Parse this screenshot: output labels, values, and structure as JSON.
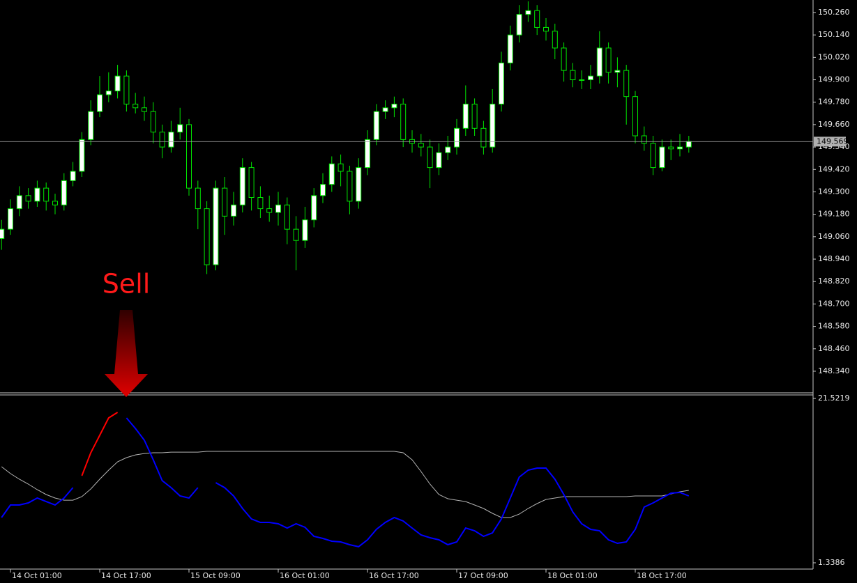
{
  "chart_data": [
    {
      "type": "candlestick",
      "annotation": "Sell",
      "current_price": 149.569,
      "categories": [
        null,
        "14 Oct 01:00",
        null,
        null,
        null,
        null,
        null,
        null,
        null,
        null,
        null,
        "14 Oct 17:00",
        null,
        null,
        null,
        null,
        null,
        null,
        null,
        null,
        null,
        "15 Oct 09:00",
        null,
        null,
        null,
        null,
        null,
        null,
        null,
        null,
        null,
        "16 Oct 01:00",
        null,
        null,
        null,
        null,
        null,
        null,
        null,
        null,
        null,
        "16 Oct 17:00",
        null,
        null,
        null,
        null,
        null,
        null,
        null,
        null,
        null,
        "17 Oct 09:00",
        null,
        null,
        null,
        null,
        null,
        null,
        null,
        null,
        null,
        "18 Oct 01:00",
        null,
        null,
        null,
        null,
        null,
        null,
        null,
        null,
        null,
        "18 Oct 17:00",
        null,
        null,
        null,
        null,
        null,
        null
      ],
      "open": [
        149.05,
        149.1,
        149.21,
        149.28,
        149.25,
        149.32,
        149.25,
        149.23,
        149.36,
        149.41,
        149.58,
        149.73,
        149.82,
        149.84,
        149.92,
        149.77,
        149.75,
        149.73,
        149.62,
        149.54,
        149.62,
        149.66,
        149.32,
        149.21,
        148.91,
        149.32,
        149.17,
        149.23,
        149.43,
        149.27,
        149.21,
        149.19,
        149.23,
        149.1,
        149.04,
        149.15,
        149.28,
        149.34,
        149.45,
        149.41,
        149.25,
        149.43,
        149.58,
        149.73,
        149.75,
        149.77,
        149.58,
        149.56,
        149.54,
        149.43,
        149.51,
        149.54,
        149.64,
        149.77,
        149.64,
        149.54,
        149.77,
        149.99,
        150.14,
        150.25,
        150.27,
        150.18,
        150.16,
        150.07,
        149.95,
        149.9,
        149.9,
        149.92,
        150.07,
        149.94,
        149.95,
        149.81,
        149.6,
        149.56,
        149.43,
        149.54,
        149.53,
        149.54
      ],
      "high": [
        149.15,
        149.26,
        149.33,
        149.32,
        149.36,
        149.35,
        149.29,
        149.4,
        149.46,
        149.62,
        149.79,
        149.92,
        149.94,
        149.98,
        149.95,
        149.83,
        149.81,
        149.78,
        149.66,
        149.68,
        149.75,
        149.69,
        149.36,
        149.25,
        149.36,
        149.38,
        149.3,
        149.48,
        149.46,
        149.33,
        149.28,
        149.3,
        149.27,
        149.17,
        149.22,
        149.32,
        149.4,
        149.49,
        149.5,
        149.44,
        149.48,
        149.63,
        149.77,
        149.79,
        149.81,
        149.8,
        149.63,
        149.61,
        149.58,
        149.56,
        149.6,
        149.69,
        149.87,
        149.8,
        149.68,
        149.85,
        150.05,
        150.19,
        150.3,
        150.32,
        150.3,
        150.23,
        150.2,
        150.1,
        149.99,
        149.95,
        149.98,
        150.16,
        150.1,
        150.02,
        149.98,
        149.84,
        149.65,
        149.6,
        149.58,
        149.58,
        149.61,
        149.6
      ],
      "low": [
        148.99,
        149.07,
        149.17,
        149.21,
        149.22,
        149.2,
        149.18,
        149.2,
        149.33,
        149.38,
        149.55,
        149.7,
        149.78,
        149.8,
        149.73,
        149.72,
        149.68,
        149.56,
        149.48,
        149.51,
        149.58,
        149.28,
        149.1,
        148.86,
        148.88,
        149.07,
        149.12,
        149.19,
        149.2,
        149.16,
        149.14,
        149.12,
        149.02,
        148.88,
        149.0,
        149.11,
        149.24,
        149.3,
        149.33,
        149.18,
        149.21,
        149.39,
        149.55,
        149.69,
        149.7,
        149.54,
        149.51,
        149.49,
        149.32,
        149.39,
        149.47,
        149.5,
        149.6,
        149.6,
        149.5,
        149.51,
        149.73,
        149.95,
        150.1,
        150.21,
        150.14,
        150.11,
        150.01,
        149.89,
        149.86,
        149.85,
        149.85,
        149.88,
        149.88,
        149.86,
        149.66,
        149.56,
        149.52,
        149.39,
        149.41,
        149.47,
        149.49,
        149.51
      ],
      "close": [
        149.1,
        149.21,
        149.28,
        149.25,
        149.32,
        149.25,
        149.23,
        149.36,
        149.41,
        149.58,
        149.73,
        149.82,
        149.84,
        149.92,
        149.77,
        149.75,
        149.73,
        149.62,
        149.54,
        149.62,
        149.66,
        149.32,
        149.21,
        148.91,
        149.32,
        149.17,
        149.23,
        149.43,
        149.27,
        149.21,
        149.19,
        149.23,
        149.1,
        149.04,
        149.15,
        149.28,
        149.34,
        149.45,
        149.41,
        149.25,
        149.43,
        149.58,
        149.73,
        149.75,
        149.77,
        149.58,
        149.56,
        149.54,
        149.43,
        149.51,
        149.54,
        149.64,
        149.77,
        149.64,
        149.54,
        149.77,
        149.99,
        150.14,
        150.25,
        150.27,
        150.18,
        150.16,
        150.07,
        149.95,
        149.9,
        149.9,
        149.92,
        150.07,
        149.94,
        149.95,
        149.81,
        149.6,
        149.56,
        149.43,
        149.54,
        149.53,
        149.54,
        149.57
      ],
      "up_color": "#ffffff",
      "down_color": "#000000",
      "wick_color": "#00e600",
      "ylim": [
        148.228,
        150.327
      ],
      "yticks": [
        {
          "value": 150.26,
          "label": "150.260"
        },
        {
          "value": 150.14,
          "label": "150.140"
        },
        {
          "value": 150.02,
          "label": "150.020"
        },
        {
          "value": 149.9,
          "label": "149.900"
        },
        {
          "value": 149.78,
          "label": "149.780"
        },
        {
          "value": 149.66,
          "label": "149.660"
        },
        {
          "value": 149.54,
          "label": "149.540"
        },
        {
          "value": 149.42,
          "label": "149.420"
        },
        {
          "value": 149.3,
          "label": "149.300"
        },
        {
          "value": 149.18,
          "label": "149.180"
        },
        {
          "value": 149.06,
          "label": "149.060"
        },
        {
          "value": 148.94,
          "label": "148.940"
        },
        {
          "value": 148.82,
          "label": "148.820"
        },
        {
          "value": 148.7,
          "label": "148.700"
        },
        {
          "value": 148.58,
          "label": "148.580"
        },
        {
          "value": 148.46,
          "label": "148.460"
        },
        {
          "value": 148.34,
          "label": "148.340"
        }
      ]
    },
    {
      "type": "line",
      "ylim": [
        1.3386,
        21.5219
      ],
      "yticks": [
        21.5219,
        1.3386
      ],
      "series": [
        {
          "color": "#0000ff",
          "values": [
            6.9,
            8.44,
            8.44,
            8.69,
            9.29,
            8.86,
            8.44,
            9.29,
            10.57,
            null,
            null,
            null,
            null,
            null,
            19.13,
            17.84,
            16.39,
            13.99,
            11.43,
            10.57,
            9.55,
            9.29,
            10.57,
            null,
            11.17,
            10.57,
            9.55,
            8.01,
            6.73,
            6.3,
            6.3,
            6.13,
            5.61,
            6.13,
            5.7,
            4.59,
            4.33,
            3.99,
            3.9,
            3.56,
            3.31,
            4.16,
            5.44,
            6.3,
            6.9,
            6.47,
            5.61,
            4.76,
            4.42,
            4.16,
            3.56,
            3.9,
            5.61,
            5.27,
            4.59,
            5.02,
            6.73,
            9.29,
            11.86,
            12.71,
            12.97,
            12.97,
            11.6,
            9.72,
            7.58,
            6.13,
            5.44,
            5.27,
            4.16,
            3.73,
            3.9,
            5.44,
            8.18,
            8.69,
            9.29,
            9.89,
            9.98,
            9.55
          ]
        },
        {
          "color": "#ff0000",
          "values": [
            null,
            null,
            null,
            null,
            null,
            null,
            null,
            null,
            null,
            12.03,
            14.85,
            16.99,
            19.13,
            19.81,
            null,
            null,
            null,
            null,
            null,
            null,
            null,
            null,
            null,
            null,
            null,
            null,
            null,
            null,
            null,
            null,
            null,
            null,
            null,
            null,
            null,
            null,
            null,
            null,
            null,
            null,
            null,
            null,
            null,
            null,
            null,
            null,
            null,
            null,
            null,
            null,
            null,
            null,
            null,
            null,
            null,
            null,
            null,
            null,
            null,
            null,
            null,
            null,
            null,
            null,
            null,
            null,
            null,
            null,
            null,
            null,
            null,
            null,
            null,
            null,
            null,
            null,
            null,
            null
          ]
        },
        {
          "color": "#b4b4b4",
          "values": [
            13.14,
            12.29,
            11.6,
            11.0,
            10.32,
            9.72,
            9.29,
            9.03,
            9.03,
            9.46,
            10.4,
            11.6,
            12.71,
            13.74,
            14.25,
            14.59,
            14.76,
            14.85,
            14.85,
            14.93,
            14.93,
            14.93,
            14.93,
            15.02,
            15.02,
            15.02,
            15.02,
            15.02,
            15.02,
            15.02,
            15.02,
            15.02,
            15.02,
            15.02,
            15.02,
            15.02,
            15.02,
            15.02,
            15.02,
            15.02,
            15.02,
            15.02,
            15.02,
            15.02,
            15.02,
            14.85,
            13.99,
            12.54,
            11.0,
            9.72,
            9.21,
            9.03,
            8.86,
            8.44,
            8.01,
            7.41,
            6.9,
            6.9,
            7.32,
            8.01,
            8.61,
            9.12,
            9.29,
            9.46,
            9.46,
            9.46,
            9.46,
            9.46,
            9.46,
            9.46,
            9.46,
            9.55,
            9.55,
            9.55,
            9.55,
            9.8,
            10.06,
            10.23
          ]
        }
      ]
    }
  ]
}
